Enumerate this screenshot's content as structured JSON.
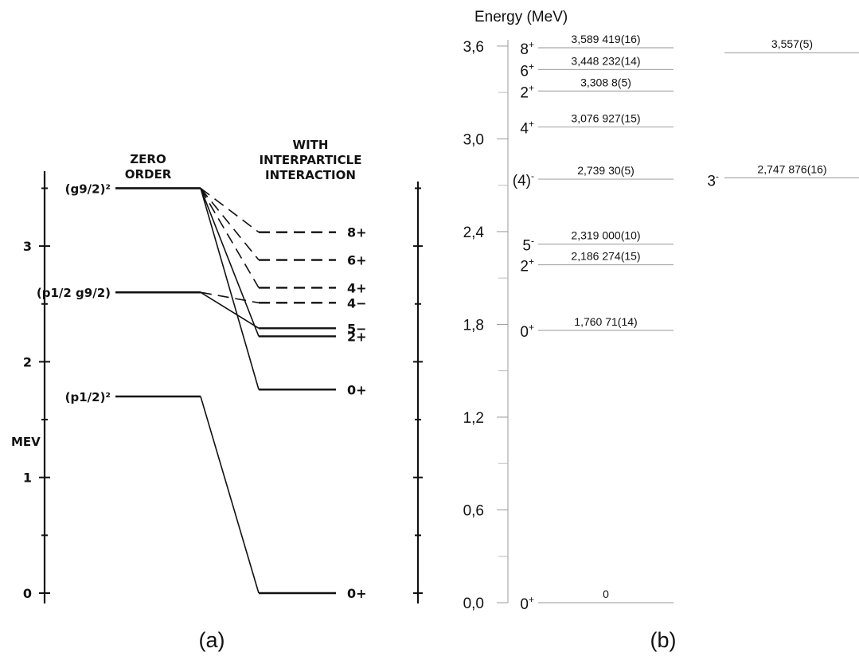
{
  "panel_a": {
    "caption": "(a)",
    "axis_title": "MEV",
    "ticks": [
      {
        "label": "0",
        "value": 0
      },
      {
        "label": "1",
        "value": 1
      },
      {
        "label": "2",
        "value": 2
      },
      {
        "label": "3",
        "value": 3
      }
    ],
    "column_headers": {
      "zero_order": [
        "ZERO",
        "ORDER"
      ],
      "interaction": [
        "WITH",
        "INTERPARTICLE",
        "INTERACTION"
      ]
    },
    "zero_order_levels": [
      {
        "label": "(g9/2)²",
        "energy": 3.5
      },
      {
        "label": "(p1/2 g9/2)",
        "energy": 2.6
      },
      {
        "label": "(p1/2)²",
        "energy": 1.7
      }
    ],
    "interaction_levels": [
      {
        "label": "8+",
        "energy": 3.12,
        "style": "dashed",
        "from": 0
      },
      {
        "label": "6+",
        "energy": 2.88,
        "style": "dashed",
        "from": 0
      },
      {
        "label": "4+",
        "energy": 2.64,
        "style": "dashed",
        "from": 0
      },
      {
        "label": "4−",
        "energy": 2.51,
        "style": "dashed",
        "from": 1
      },
      {
        "label": "5−",
        "energy": 2.29,
        "style": "solid",
        "from": 1
      },
      {
        "label": "2+",
        "energy": 2.22,
        "style": "solid",
        "from": 0
      },
      {
        "label": "0+",
        "energy": 1.76,
        "style": "solid",
        "from": 0
      },
      {
        "label": "0+",
        "energy": 0.0,
        "style": "solid",
        "from": 2
      }
    ]
  },
  "panel_b": {
    "caption": "(b)",
    "axis_title": "Energy (MeV)",
    "ticks": [
      {
        "label": "0,0",
        "value": 0.0
      },
      {
        "label": "0,6",
        "value": 0.6
      },
      {
        "label": "1,2",
        "value": 1.2
      },
      {
        "label": "1,8",
        "value": 1.8
      },
      {
        "label": "2,4",
        "value": 2.4
      },
      {
        "label": "3,0",
        "value": 3.0
      },
      {
        "label": "3,6",
        "value": 3.6
      }
    ],
    "minor_ticks": [
      0.3,
      0.9,
      1.5,
      2.1,
      2.7,
      3.3
    ],
    "levels": [
      {
        "energy_label": "3,589 419(16)",
        "spin": "8",
        "parity": "+",
        "energy": 3.589
      },
      {
        "energy_label": "3,448 232(14)",
        "spin": "6",
        "parity": "+",
        "energy": 3.448
      },
      {
        "energy_label": "3,308 8(5)",
        "spin": "2",
        "parity": "+",
        "energy": 3.309
      },
      {
        "energy_label": "3,076 927(15)",
        "spin": "4",
        "parity": "+",
        "energy": 3.077
      },
      {
        "energy_label": "2,739 30(5)",
        "spin": "(4)",
        "parity": "-",
        "energy": 2.739
      },
      {
        "energy_label": "2,319 000(10)",
        "spin": "5",
        "parity": "-",
        "energy": 2.319
      },
      {
        "energy_label": "2,186 274(15)",
        "spin": "2",
        "parity": "+",
        "energy": 2.186
      },
      {
        "energy_label": "1,760 71(14)",
        "spin": "0",
        "parity": "+",
        "energy": 1.761
      },
      {
        "energy_label": "0",
        "spin": "0",
        "parity": "+",
        "energy": 0.0
      }
    ],
    "side_levels": [
      {
        "energy_label": "3,557(5)",
        "spin": "",
        "parity": "",
        "energy": 3.557
      },
      {
        "energy_label": "2,747 876(16)",
        "spin": "3",
        "parity": "-",
        "energy": 2.748
      }
    ]
  }
}
